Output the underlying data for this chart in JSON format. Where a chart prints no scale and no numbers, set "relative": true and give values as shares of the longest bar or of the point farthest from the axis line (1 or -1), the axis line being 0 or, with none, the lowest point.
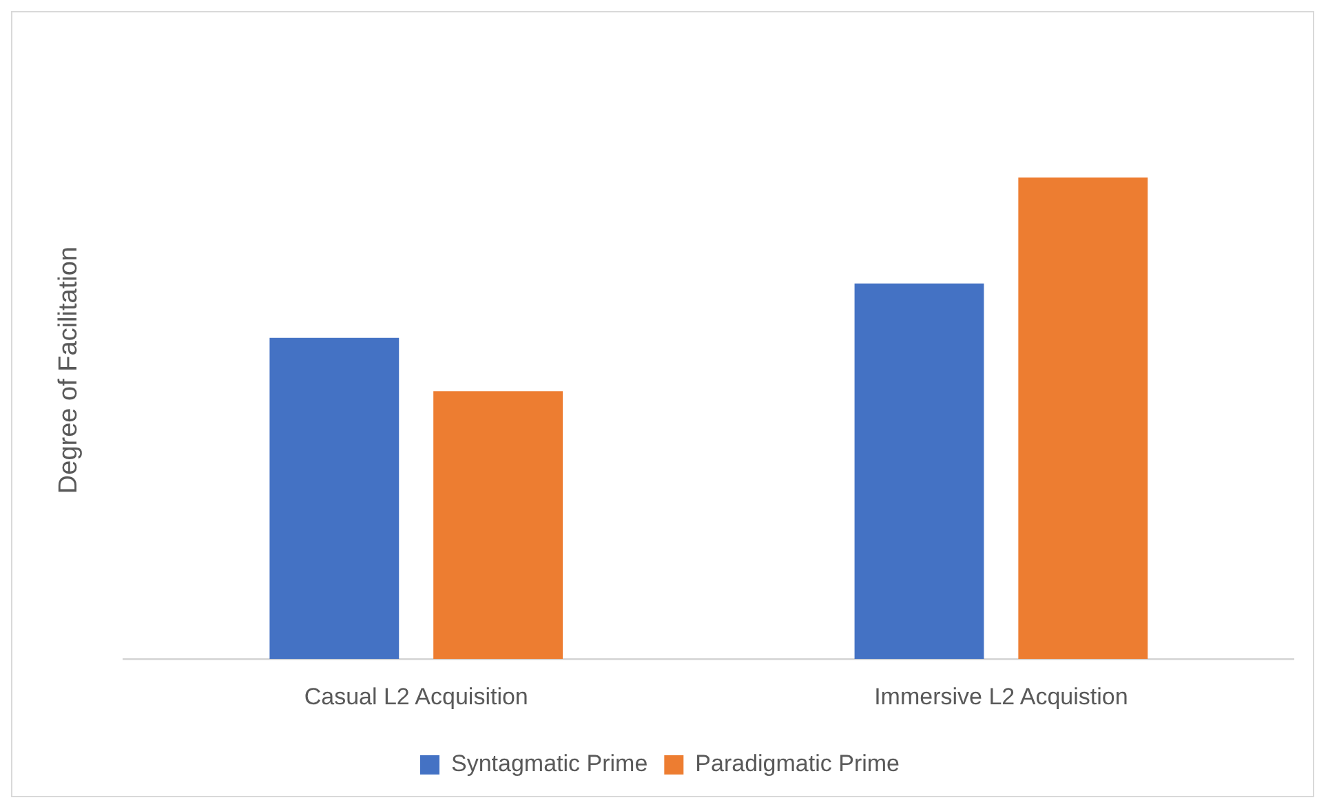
{
  "chart_data": {
    "type": "bar",
    "relative": true,
    "ylabel": "Degree of Facilitation",
    "categories": [
      "Casual L2 Acquisition",
      "Immersive L2 Acquistion"
    ],
    "series": [
      {
        "name": "Syntagmatic Prime",
        "color": "#4472c4",
        "values": [
          0.667,
          0.78
        ]
      },
      {
        "name": "Paradigmatic Prime",
        "color": "#ed7d31",
        "values": [
          0.556,
          1
        ]
      }
    ],
    "grid": false,
    "legend": "bottom"
  }
}
